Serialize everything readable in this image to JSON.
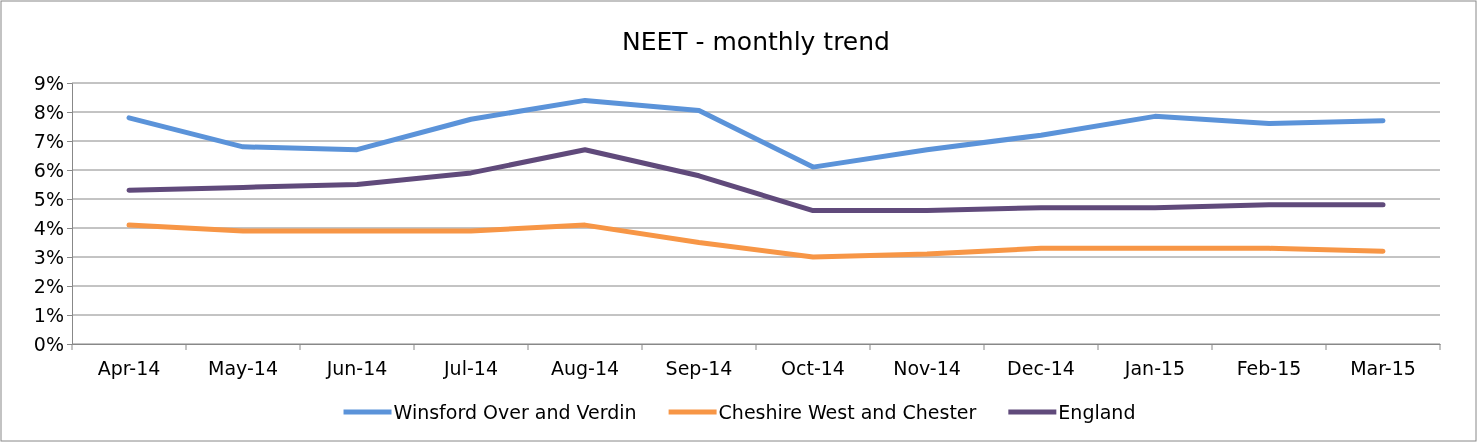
{
  "chart_data": {
    "type": "line",
    "title": "NEET - monthly trend",
    "categories": [
      "Apr-14",
      "May-14",
      "Jun-14",
      "Jul-14",
      "Aug-14",
      "Sep-14",
      "Oct-14",
      "Nov-14",
      "Dec-14",
      "Jan-15",
      "Feb-15",
      "Mar-15"
    ],
    "series": [
      {
        "name": "Winsford Over and Verdin",
        "color": "#5b93d9",
        "values": [
          7.8,
          6.8,
          6.7,
          7.75,
          8.4,
          8.05,
          6.1,
          6.7,
          7.2,
          7.85,
          7.6,
          7.7
        ]
      },
      {
        "name": "Cheshire West and Chester",
        "color": "#f79646",
        "values": [
          4.1,
          3.9,
          3.9,
          3.9,
          4.1,
          3.5,
          3.0,
          3.1,
          3.3,
          3.3,
          3.3,
          3.2
        ]
      },
      {
        "name": "England",
        "color": "#604a7b",
        "values": [
          5.3,
          5.4,
          5.5,
          5.9,
          6.7,
          5.8,
          4.6,
          4.6,
          4.7,
          4.7,
          4.8,
          4.8
        ]
      }
    ],
    "ylim": [
      0,
      9
    ],
    "yticks": [
      {
        "value": 0,
        "label": "0%"
      },
      {
        "value": 1,
        "label": "1%"
      },
      {
        "value": 2,
        "label": "2%"
      },
      {
        "value": 3,
        "label": "3%"
      },
      {
        "value": 4,
        "label": "4%"
      },
      {
        "value": 5,
        "label": "5%"
      },
      {
        "value": 6,
        "label": "6%"
      },
      {
        "value": 7,
        "label": "7%"
      },
      {
        "value": 8,
        "label": "8%"
      },
      {
        "value": 9,
        "label": "9%"
      }
    ],
    "grid": "y",
    "legend": "bottom",
    "marker": "none",
    "line_style": "solid"
  }
}
